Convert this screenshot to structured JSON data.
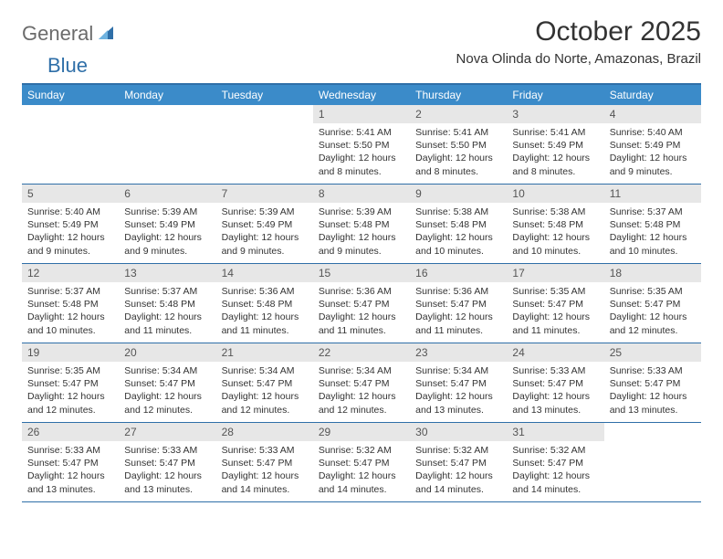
{
  "logo": {
    "general": "General",
    "blue": "Blue"
  },
  "title": "October 2025",
  "location": "Nova Olinda do Norte, Amazonas, Brazil",
  "colors": {
    "accent": "#3b8bc9",
    "accent_dark": "#2f6fa8",
    "daynum_bg": "#e7e7e7",
    "text": "#333333",
    "logo_gray": "#6b6b6b"
  },
  "dow": [
    "Sunday",
    "Monday",
    "Tuesday",
    "Wednesday",
    "Thursday",
    "Friday",
    "Saturday"
  ],
  "weeks": [
    [
      {
        "n": "",
        "sr": "",
        "ss": "",
        "dl": ""
      },
      {
        "n": "",
        "sr": "",
        "ss": "",
        "dl": ""
      },
      {
        "n": "",
        "sr": "",
        "ss": "",
        "dl": ""
      },
      {
        "n": "1",
        "sr": "Sunrise: 5:41 AM",
        "ss": "Sunset: 5:50 PM",
        "dl": "Daylight: 12 hours and 8 minutes."
      },
      {
        "n": "2",
        "sr": "Sunrise: 5:41 AM",
        "ss": "Sunset: 5:50 PM",
        "dl": "Daylight: 12 hours and 8 minutes."
      },
      {
        "n": "3",
        "sr": "Sunrise: 5:41 AM",
        "ss": "Sunset: 5:49 PM",
        "dl": "Daylight: 12 hours and 8 minutes."
      },
      {
        "n": "4",
        "sr": "Sunrise: 5:40 AM",
        "ss": "Sunset: 5:49 PM",
        "dl": "Daylight: 12 hours and 9 minutes."
      }
    ],
    [
      {
        "n": "5",
        "sr": "Sunrise: 5:40 AM",
        "ss": "Sunset: 5:49 PM",
        "dl": "Daylight: 12 hours and 9 minutes."
      },
      {
        "n": "6",
        "sr": "Sunrise: 5:39 AM",
        "ss": "Sunset: 5:49 PM",
        "dl": "Daylight: 12 hours and 9 minutes."
      },
      {
        "n": "7",
        "sr": "Sunrise: 5:39 AM",
        "ss": "Sunset: 5:49 PM",
        "dl": "Daylight: 12 hours and 9 minutes."
      },
      {
        "n": "8",
        "sr": "Sunrise: 5:39 AM",
        "ss": "Sunset: 5:48 PM",
        "dl": "Daylight: 12 hours and 9 minutes."
      },
      {
        "n": "9",
        "sr": "Sunrise: 5:38 AM",
        "ss": "Sunset: 5:48 PM",
        "dl": "Daylight: 12 hours and 10 minutes."
      },
      {
        "n": "10",
        "sr": "Sunrise: 5:38 AM",
        "ss": "Sunset: 5:48 PM",
        "dl": "Daylight: 12 hours and 10 minutes."
      },
      {
        "n": "11",
        "sr": "Sunrise: 5:37 AM",
        "ss": "Sunset: 5:48 PM",
        "dl": "Daylight: 12 hours and 10 minutes."
      }
    ],
    [
      {
        "n": "12",
        "sr": "Sunrise: 5:37 AM",
        "ss": "Sunset: 5:48 PM",
        "dl": "Daylight: 12 hours and 10 minutes."
      },
      {
        "n": "13",
        "sr": "Sunrise: 5:37 AM",
        "ss": "Sunset: 5:48 PM",
        "dl": "Daylight: 12 hours and 11 minutes."
      },
      {
        "n": "14",
        "sr": "Sunrise: 5:36 AM",
        "ss": "Sunset: 5:48 PM",
        "dl": "Daylight: 12 hours and 11 minutes."
      },
      {
        "n": "15",
        "sr": "Sunrise: 5:36 AM",
        "ss": "Sunset: 5:47 PM",
        "dl": "Daylight: 12 hours and 11 minutes."
      },
      {
        "n": "16",
        "sr": "Sunrise: 5:36 AM",
        "ss": "Sunset: 5:47 PM",
        "dl": "Daylight: 12 hours and 11 minutes."
      },
      {
        "n": "17",
        "sr": "Sunrise: 5:35 AM",
        "ss": "Sunset: 5:47 PM",
        "dl": "Daylight: 12 hours and 11 minutes."
      },
      {
        "n": "18",
        "sr": "Sunrise: 5:35 AM",
        "ss": "Sunset: 5:47 PM",
        "dl": "Daylight: 12 hours and 12 minutes."
      }
    ],
    [
      {
        "n": "19",
        "sr": "Sunrise: 5:35 AM",
        "ss": "Sunset: 5:47 PM",
        "dl": "Daylight: 12 hours and 12 minutes."
      },
      {
        "n": "20",
        "sr": "Sunrise: 5:34 AM",
        "ss": "Sunset: 5:47 PM",
        "dl": "Daylight: 12 hours and 12 minutes."
      },
      {
        "n": "21",
        "sr": "Sunrise: 5:34 AM",
        "ss": "Sunset: 5:47 PM",
        "dl": "Daylight: 12 hours and 12 minutes."
      },
      {
        "n": "22",
        "sr": "Sunrise: 5:34 AM",
        "ss": "Sunset: 5:47 PM",
        "dl": "Daylight: 12 hours and 12 minutes."
      },
      {
        "n": "23",
        "sr": "Sunrise: 5:34 AM",
        "ss": "Sunset: 5:47 PM",
        "dl": "Daylight: 12 hours and 13 minutes."
      },
      {
        "n": "24",
        "sr": "Sunrise: 5:33 AM",
        "ss": "Sunset: 5:47 PM",
        "dl": "Daylight: 12 hours and 13 minutes."
      },
      {
        "n": "25",
        "sr": "Sunrise: 5:33 AM",
        "ss": "Sunset: 5:47 PM",
        "dl": "Daylight: 12 hours and 13 minutes."
      }
    ],
    [
      {
        "n": "26",
        "sr": "Sunrise: 5:33 AM",
        "ss": "Sunset: 5:47 PM",
        "dl": "Daylight: 12 hours and 13 minutes."
      },
      {
        "n": "27",
        "sr": "Sunrise: 5:33 AM",
        "ss": "Sunset: 5:47 PM",
        "dl": "Daylight: 12 hours and 13 minutes."
      },
      {
        "n": "28",
        "sr": "Sunrise: 5:33 AM",
        "ss": "Sunset: 5:47 PM",
        "dl": "Daylight: 12 hours and 14 minutes."
      },
      {
        "n": "29",
        "sr": "Sunrise: 5:32 AM",
        "ss": "Sunset: 5:47 PM",
        "dl": "Daylight: 12 hours and 14 minutes."
      },
      {
        "n": "30",
        "sr": "Sunrise: 5:32 AM",
        "ss": "Sunset: 5:47 PM",
        "dl": "Daylight: 12 hours and 14 minutes."
      },
      {
        "n": "31",
        "sr": "Sunrise: 5:32 AM",
        "ss": "Sunset: 5:47 PM",
        "dl": "Daylight: 12 hours and 14 minutes."
      },
      {
        "n": "",
        "sr": "",
        "ss": "",
        "dl": ""
      }
    ]
  ]
}
